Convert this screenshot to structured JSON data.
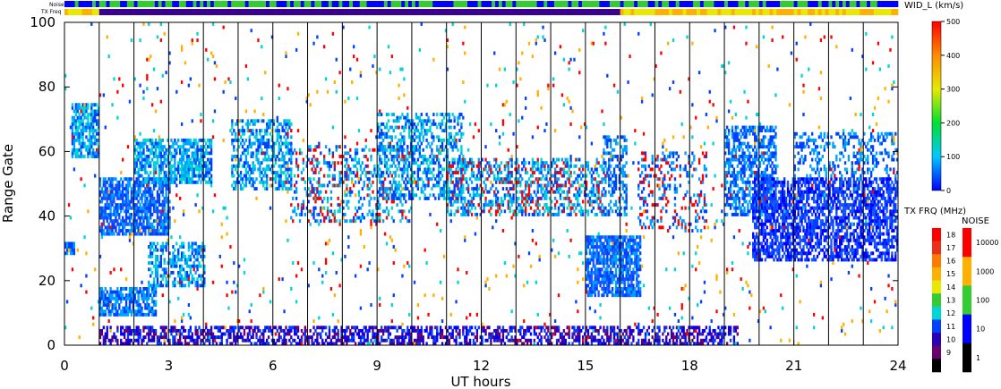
{
  "chart_data": {
    "type": "heatmap",
    "xlabel": "UT hours",
    "ylabel": "Range Gate",
    "xlim": [
      0,
      24
    ],
    "ylim": [
      0,
      100
    ],
    "xticks": [
      0,
      3,
      6,
      9,
      12,
      15,
      18,
      21,
      24
    ],
    "yticks": [
      0,
      20,
      40,
      60,
      80,
      100
    ],
    "hour_lines": [
      1,
      2,
      3,
      4,
      5,
      6,
      7,
      8,
      9,
      10,
      11,
      12,
      13,
      14,
      15,
      16,
      17,
      18,
      19,
      20,
      21,
      22,
      23
    ],
    "top_bars": {
      "noise_label": "Noise",
      "freq_label": "TX Freq"
    },
    "colorbar_width": {
      "label": "WID_L (km/s)",
      "ticks": [
        "500",
        "400",
        "300",
        "200",
        "100",
        "0"
      ]
    },
    "colorbar_freq": {
      "label": "TX FRQ (MHz)",
      "ticks": [
        "18",
        "17",
        "16",
        "15",
        "14",
        "13",
        "12",
        "11",
        "10",
        "9"
      ],
      "colors": [
        "#ff0000",
        "#e8301a",
        "#ff7a00",
        "#ffb000",
        "#e8e800",
        "#33cc33",
        "#00d5d5",
        "#0040ff",
        "#2a00b8",
        "#6a0070",
        "#000000"
      ]
    },
    "colorbar_noise": {
      "label": "NOISE",
      "ticks": [
        "10000",
        "1000",
        "100",
        "10",
        "1"
      ],
      "colors": [
        "#ff0000",
        "#ffb000",
        "#33cc33",
        "#0000ff",
        "#000000"
      ]
    },
    "clusters": [
      {
        "t0": 0.0,
        "t1": 0.3,
        "g0": 28,
        "g1": 32,
        "density": 0.9,
        "colors": [
          "#0040ff",
          "#00a0ff"
        ]
      },
      {
        "t0": 0.2,
        "t1": 1.0,
        "g0": 58,
        "g1": 75,
        "density": 0.7,
        "colors": [
          "#0040ff",
          "#00a0ff",
          "#00d5d5"
        ]
      },
      {
        "t0": 1.0,
        "t1": 3.0,
        "g0": 34,
        "g1": 52,
        "density": 0.75,
        "colors": [
          "#0040ff",
          "#1a55ff",
          "#00a0ff"
        ]
      },
      {
        "t0": 2.0,
        "t1": 4.2,
        "g0": 50,
        "g1": 64,
        "density": 0.7,
        "colors": [
          "#0040ff",
          "#00a0ff",
          "#00d5d5"
        ]
      },
      {
        "t0": 1.0,
        "t1": 2.6,
        "g0": 9,
        "g1": 18,
        "density": 0.75,
        "colors": [
          "#0040ff",
          "#00a0ff"
        ]
      },
      {
        "t0": 2.4,
        "t1": 4.0,
        "g0": 18,
        "g1": 32,
        "density": 0.5,
        "colors": [
          "#0040ff",
          "#00a0ff",
          "#00d5d5"
        ]
      },
      {
        "t0": 4.8,
        "t1": 6.5,
        "g0": 48,
        "g1": 70,
        "density": 0.5,
        "colors": [
          "#0040ff",
          "#00a0ff",
          "#00d5d5"
        ]
      },
      {
        "t0": 6.5,
        "t1": 10.0,
        "g0": 38,
        "g1": 62,
        "density": 0.28,
        "colors": [
          "#0040ff",
          "#00a0ff",
          "#00d5d5",
          "#ff0000"
        ]
      },
      {
        "t0": 9.0,
        "t1": 11.5,
        "g0": 45,
        "g1": 72,
        "density": 0.45,
        "colors": [
          "#0040ff",
          "#00a0ff",
          "#00d5d5"
        ]
      },
      {
        "t0": 11.0,
        "t1": 15.5,
        "g0": 40,
        "g1": 58,
        "density": 0.45,
        "colors": [
          "#0040ff",
          "#00a0ff",
          "#00d5d5",
          "#ff0000"
        ]
      },
      {
        "t0": 15.0,
        "t1": 16.6,
        "g0": 15,
        "g1": 34,
        "density": 0.8,
        "colors": [
          "#0040ff",
          "#1a55ff",
          "#00a0ff"
        ]
      },
      {
        "t0": 15.5,
        "t1": 16.2,
        "g0": 40,
        "g1": 65,
        "density": 0.45,
        "colors": [
          "#0040ff",
          "#00a0ff"
        ]
      },
      {
        "t0": 16.5,
        "t1": 18.5,
        "g0": 35,
        "g1": 60,
        "density": 0.22,
        "colors": [
          "#0040ff",
          "#00a0ff",
          "#ff0000"
        ]
      },
      {
        "t0": 19.0,
        "t1": 20.5,
        "g0": 40,
        "g1": 68,
        "density": 0.55,
        "colors": [
          "#0040ff",
          "#00a0ff"
        ]
      },
      {
        "t0": 19.8,
        "t1": 24.0,
        "g0": 26,
        "g1": 52,
        "density": 0.65,
        "colors": [
          "#0000ff",
          "#0040ff",
          "#1a55ff"
        ]
      },
      {
        "t0": 21.0,
        "t1": 24.0,
        "g0": 52,
        "g1": 66,
        "density": 0.3,
        "colors": [
          "#0040ff",
          "#00a0ff"
        ]
      },
      {
        "t0": 1.0,
        "t1": 19.4,
        "g0": 0,
        "g1": 6,
        "density": 0.55,
        "colors": [
          "#0000ff",
          "#0040ff",
          "#2a00b8",
          "#6a0070"
        ]
      },
      {
        "t0": 0.0,
        "t1": 24.0,
        "g0": 0,
        "g1": 100,
        "density": 0.02,
        "colors": [
          "#ff0000",
          "#0040ff",
          "#00d5d5",
          "#ffb000"
        ]
      }
    ]
  }
}
